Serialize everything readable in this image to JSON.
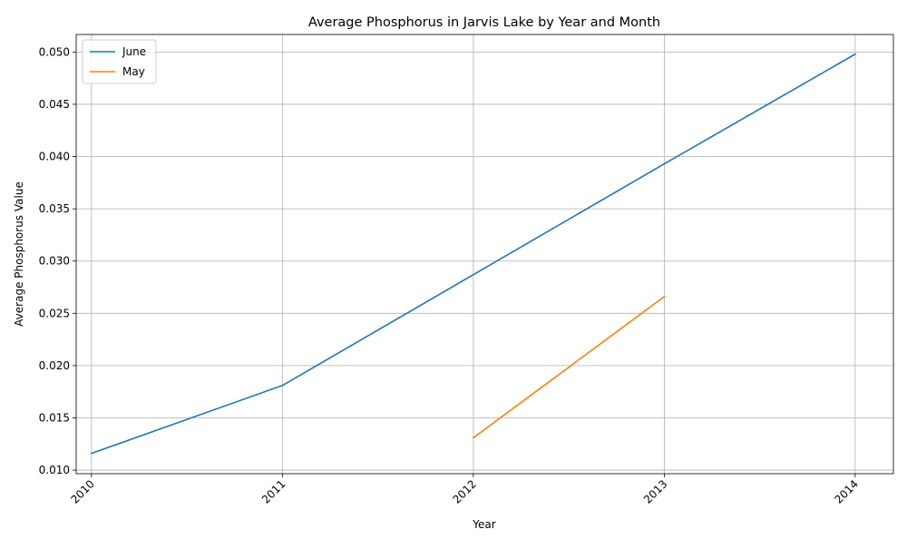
{
  "chart_data": {
    "type": "line",
    "title": "Average Phosphorus in Jarvis Lake by Year and Month",
    "xlabel": "Year",
    "ylabel": "Average Phosphorus Value",
    "x_ticks": [
      "2010",
      "2011",
      "2012",
      "2013",
      "2014"
    ],
    "y_ticks": [
      "0.010",
      "0.015",
      "0.020",
      "0.025",
      "0.030",
      "0.035",
      "0.040",
      "0.045",
      "0.050"
    ],
    "xlim": [
      2009.92,
      2014.2
    ],
    "ylim": [
      0.00966,
      0.05168
    ],
    "grid": true,
    "legend_position": "top-left",
    "series": [
      {
        "name": "June",
        "color": "#1f77b4",
        "points": [
          {
            "x": 2010,
            "y": 0.0116
          },
          {
            "x": 2011,
            "y": 0.0181
          },
          {
            "x": 2012,
            "y": 0.0287
          },
          {
            "x": 2013,
            "y": 0.0393
          },
          {
            "x": 2014,
            "y": 0.0498
          }
        ]
      },
      {
        "name": "May",
        "color": "#ff7f0e",
        "points": [
          {
            "x": 2012,
            "y": 0.0131
          },
          {
            "x": 2013,
            "y": 0.0266
          }
        ]
      }
    ]
  }
}
